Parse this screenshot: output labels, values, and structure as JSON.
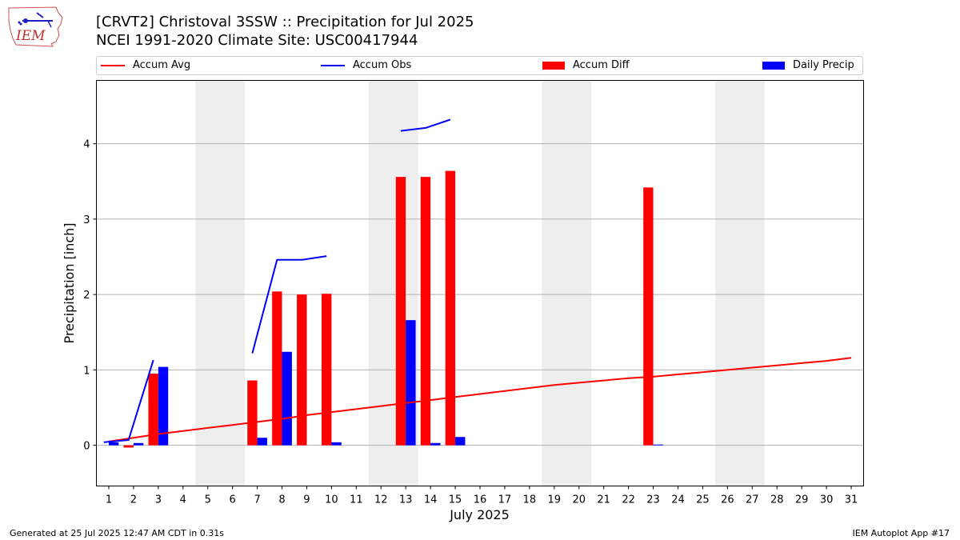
{
  "header": {
    "title_line1": "[CRVT2] Christoval 3SSW :: Precipitation for Jul 2025",
    "title_line2": "NCEI 1991-2020 Climate Site: USC00417944",
    "logo_text": "IEM"
  },
  "legend": {
    "accum_avg": "Accum Avg",
    "accum_obs": "Accum Obs",
    "accum_diff": "Accum Diff",
    "daily_precip": "Daily Precip"
  },
  "footer": {
    "generated": "Generated at 25 Jul 2025 12:47 AM CDT in 0.31s",
    "app": "IEM Autoplot App #17"
  },
  "chart_data": {
    "type": "bar",
    "xlabel": "July 2025",
    "ylabel": "Precipitation [inch]",
    "ylim": [
      -0.54,
      4.84
    ],
    "yticks": [
      0,
      1,
      2,
      3,
      4
    ],
    "grid": true,
    "legend_position": "top",
    "x": [
      1,
      2,
      3,
      4,
      5,
      6,
      7,
      8,
      9,
      10,
      11,
      12,
      13,
      14,
      15,
      16,
      17,
      18,
      19,
      20,
      21,
      22,
      23,
      24,
      25,
      26,
      27,
      28,
      29,
      30,
      31
    ],
    "weekend_shading": [
      [
        5,
        6
      ],
      [
        12,
        13
      ],
      [
        19,
        20
      ],
      [
        26,
        27
      ]
    ],
    "colors": {
      "accum_avg": "#ff0000",
      "accum_obs": "#0000ff",
      "accum_diff": "#ff0000",
      "daily_precip": "#0000ff",
      "shade": "#eeeeee",
      "grid": "#b0b0b0"
    },
    "series": [
      {
        "name": "Accum Avg",
        "kind": "line",
        "values": [
          0.05,
          0.1,
          0.15,
          0.19,
          0.23,
          0.27,
          0.31,
          0.35,
          0.4,
          0.44,
          0.48,
          0.52,
          0.56,
          0.6,
          0.64,
          0.68,
          0.72,
          0.76,
          0.8,
          0.83,
          0.86,
          0.89,
          0.91,
          0.94,
          0.97,
          1.0,
          1.03,
          1.06,
          1.09,
          1.12,
          1.16
        ]
      },
      {
        "name": "Accum Obs",
        "kind": "line",
        "values": [
          0.04,
          0.07,
          1.13,
          null,
          null,
          null,
          1.22,
          2.46,
          2.46,
          2.51,
          null,
          null,
          4.17,
          4.21,
          4.32,
          null,
          null,
          null,
          null,
          null,
          null,
          null,
          null,
          null,
          null,
          null,
          null,
          null,
          null,
          null,
          null
        ]
      },
      {
        "name": "Accum Diff",
        "kind": "bar",
        "values": [
          null,
          -0.03,
          0.95,
          null,
          null,
          null,
          0.86,
          2.04,
          2.0,
          2.01,
          null,
          null,
          3.56,
          3.56,
          3.64,
          null,
          null,
          null,
          null,
          null,
          null,
          null,
          3.42,
          null,
          null,
          null,
          null,
          null,
          null,
          null,
          null
        ]
      },
      {
        "name": "Daily Precip",
        "kind": "bar",
        "values": [
          0.04,
          0.03,
          1.04,
          null,
          null,
          null,
          0.1,
          1.24,
          null,
          0.04,
          null,
          null,
          1.66,
          0.03,
          0.11,
          null,
          null,
          null,
          null,
          null,
          null,
          null,
          0.01,
          null,
          null,
          null,
          null,
          null,
          null,
          null,
          null
        ]
      }
    ]
  }
}
